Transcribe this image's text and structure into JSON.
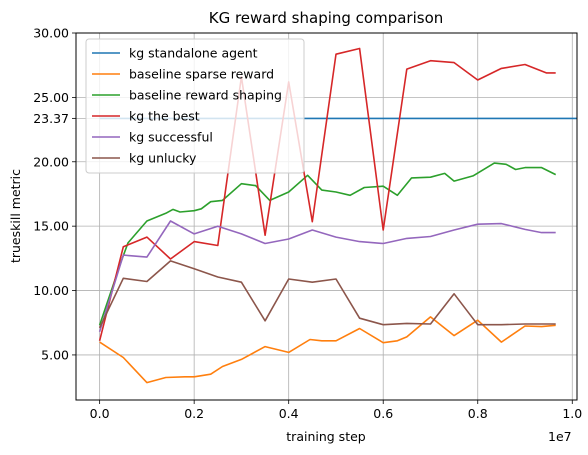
{
  "chart_data": {
    "type": "line",
    "title": "KG reward shaping comparison",
    "xlabel": "training step",
    "ylabel": "trueskill metric",
    "x_multiplier_label": "1e7",
    "xlim": [
      -0.05,
      1.01
    ],
    "ylim": [
      1.5,
      30.0
    ],
    "x_ticks": [
      0.0,
      0.2,
      0.4,
      0.6,
      0.8,
      1.0
    ],
    "x_tick_labels": [
      "0.0",
      "0.2",
      "0.4",
      "0.6",
      "0.8",
      "1.0"
    ],
    "y_ticks": [
      5.0,
      10.0,
      15.0,
      20.0,
      23.37,
      25.0,
      30.0
    ],
    "y_tick_labels": [
      "5.00",
      "10.00",
      "15.00",
      "20.00",
      "23.37",
      "25.00",
      "30.00"
    ],
    "grid": true,
    "legend_position": "top-left",
    "series": [
      {
        "name": "kg standalone agent",
        "color": "#1f77b4",
        "x": [
          0.0,
          1.01
        ],
        "y": [
          23.37,
          23.37
        ]
      },
      {
        "name": "baseline sparse reward",
        "color": "#ff7f0e",
        "x": [
          0.0,
          0.05,
          0.1,
          0.14,
          0.18,
          0.2,
          0.235,
          0.26,
          0.3,
          0.35,
          0.4,
          0.445,
          0.47,
          0.5,
          0.55,
          0.6,
          0.63,
          0.65,
          0.7,
          0.75,
          0.8,
          0.85,
          0.9,
          0.935,
          0.965
        ],
        "y": [
          6.0,
          4.8,
          2.85,
          3.25,
          3.3,
          3.3,
          3.5,
          4.1,
          4.65,
          5.65,
          5.2,
          6.2,
          6.1,
          6.1,
          7.05,
          5.95,
          6.1,
          6.4,
          7.95,
          6.5,
          7.7,
          6.0,
          7.25,
          7.2,
          7.3
        ]
      },
      {
        "name": "baseline reward shaping",
        "color": "#2ca02c",
        "x": [
          0.0,
          0.045,
          0.06,
          0.1,
          0.14,
          0.155,
          0.17,
          0.2,
          0.215,
          0.235,
          0.26,
          0.3,
          0.33,
          0.36,
          0.4,
          0.44,
          0.47,
          0.5,
          0.53,
          0.56,
          0.6,
          0.63,
          0.66,
          0.7,
          0.73,
          0.75,
          0.79,
          0.835,
          0.86,
          0.88,
          0.9,
          0.935,
          0.965
        ],
        "y": [
          7.3,
          12.2,
          13.7,
          15.4,
          16.0,
          16.3,
          16.1,
          16.2,
          16.35,
          16.9,
          17.0,
          18.3,
          18.15,
          17.0,
          17.65,
          18.95,
          17.8,
          17.65,
          17.4,
          18.0,
          18.1,
          17.4,
          18.75,
          18.8,
          19.1,
          18.5,
          18.9,
          19.9,
          19.8,
          19.4,
          19.55,
          19.55,
          19.0
        ]
      },
      {
        "name": "kg the best",
        "color": "#d62728",
        "x": [
          0.0,
          0.05,
          0.1,
          0.15,
          0.2,
          0.25,
          0.3,
          0.35,
          0.4,
          0.45,
          0.5,
          0.55,
          0.6,
          0.65,
          0.7,
          0.75,
          0.8,
          0.85,
          0.9,
          0.945,
          0.965
        ],
        "y": [
          6.1,
          13.4,
          14.15,
          12.45,
          13.8,
          13.5,
          26.6,
          14.3,
          26.2,
          15.35,
          28.35,
          28.8,
          14.7,
          27.2,
          27.85,
          27.7,
          26.35,
          27.25,
          27.55,
          26.9,
          26.9
        ]
      },
      {
        "name": "kg successful",
        "color": "#9467bd",
        "x": [
          0.0,
          0.05,
          0.1,
          0.15,
          0.2,
          0.25,
          0.3,
          0.35,
          0.4,
          0.45,
          0.5,
          0.55,
          0.6,
          0.65,
          0.7,
          0.75,
          0.8,
          0.85,
          0.9,
          0.935,
          0.965
        ],
        "y": [
          6.8,
          12.75,
          12.6,
          15.4,
          14.4,
          15.0,
          14.4,
          13.65,
          14.0,
          14.7,
          14.15,
          13.8,
          13.65,
          14.05,
          14.2,
          14.7,
          15.15,
          15.2,
          14.75,
          14.5,
          14.5
        ]
      },
      {
        "name": "kg unlucky",
        "color": "#8c564b",
        "x": [
          0.0,
          0.05,
          0.1,
          0.15,
          0.2,
          0.25,
          0.3,
          0.35,
          0.4,
          0.45,
          0.5,
          0.55,
          0.6,
          0.65,
          0.7,
          0.75,
          0.8,
          0.85,
          0.9,
          0.935,
          0.965
        ],
        "y": [
          7.1,
          10.95,
          10.7,
          12.3,
          11.7,
          11.05,
          10.65,
          7.65,
          10.9,
          10.65,
          10.9,
          7.85,
          7.35,
          7.45,
          7.4,
          9.75,
          7.35,
          7.35,
          7.4,
          7.4,
          7.4
        ]
      }
    ]
  }
}
